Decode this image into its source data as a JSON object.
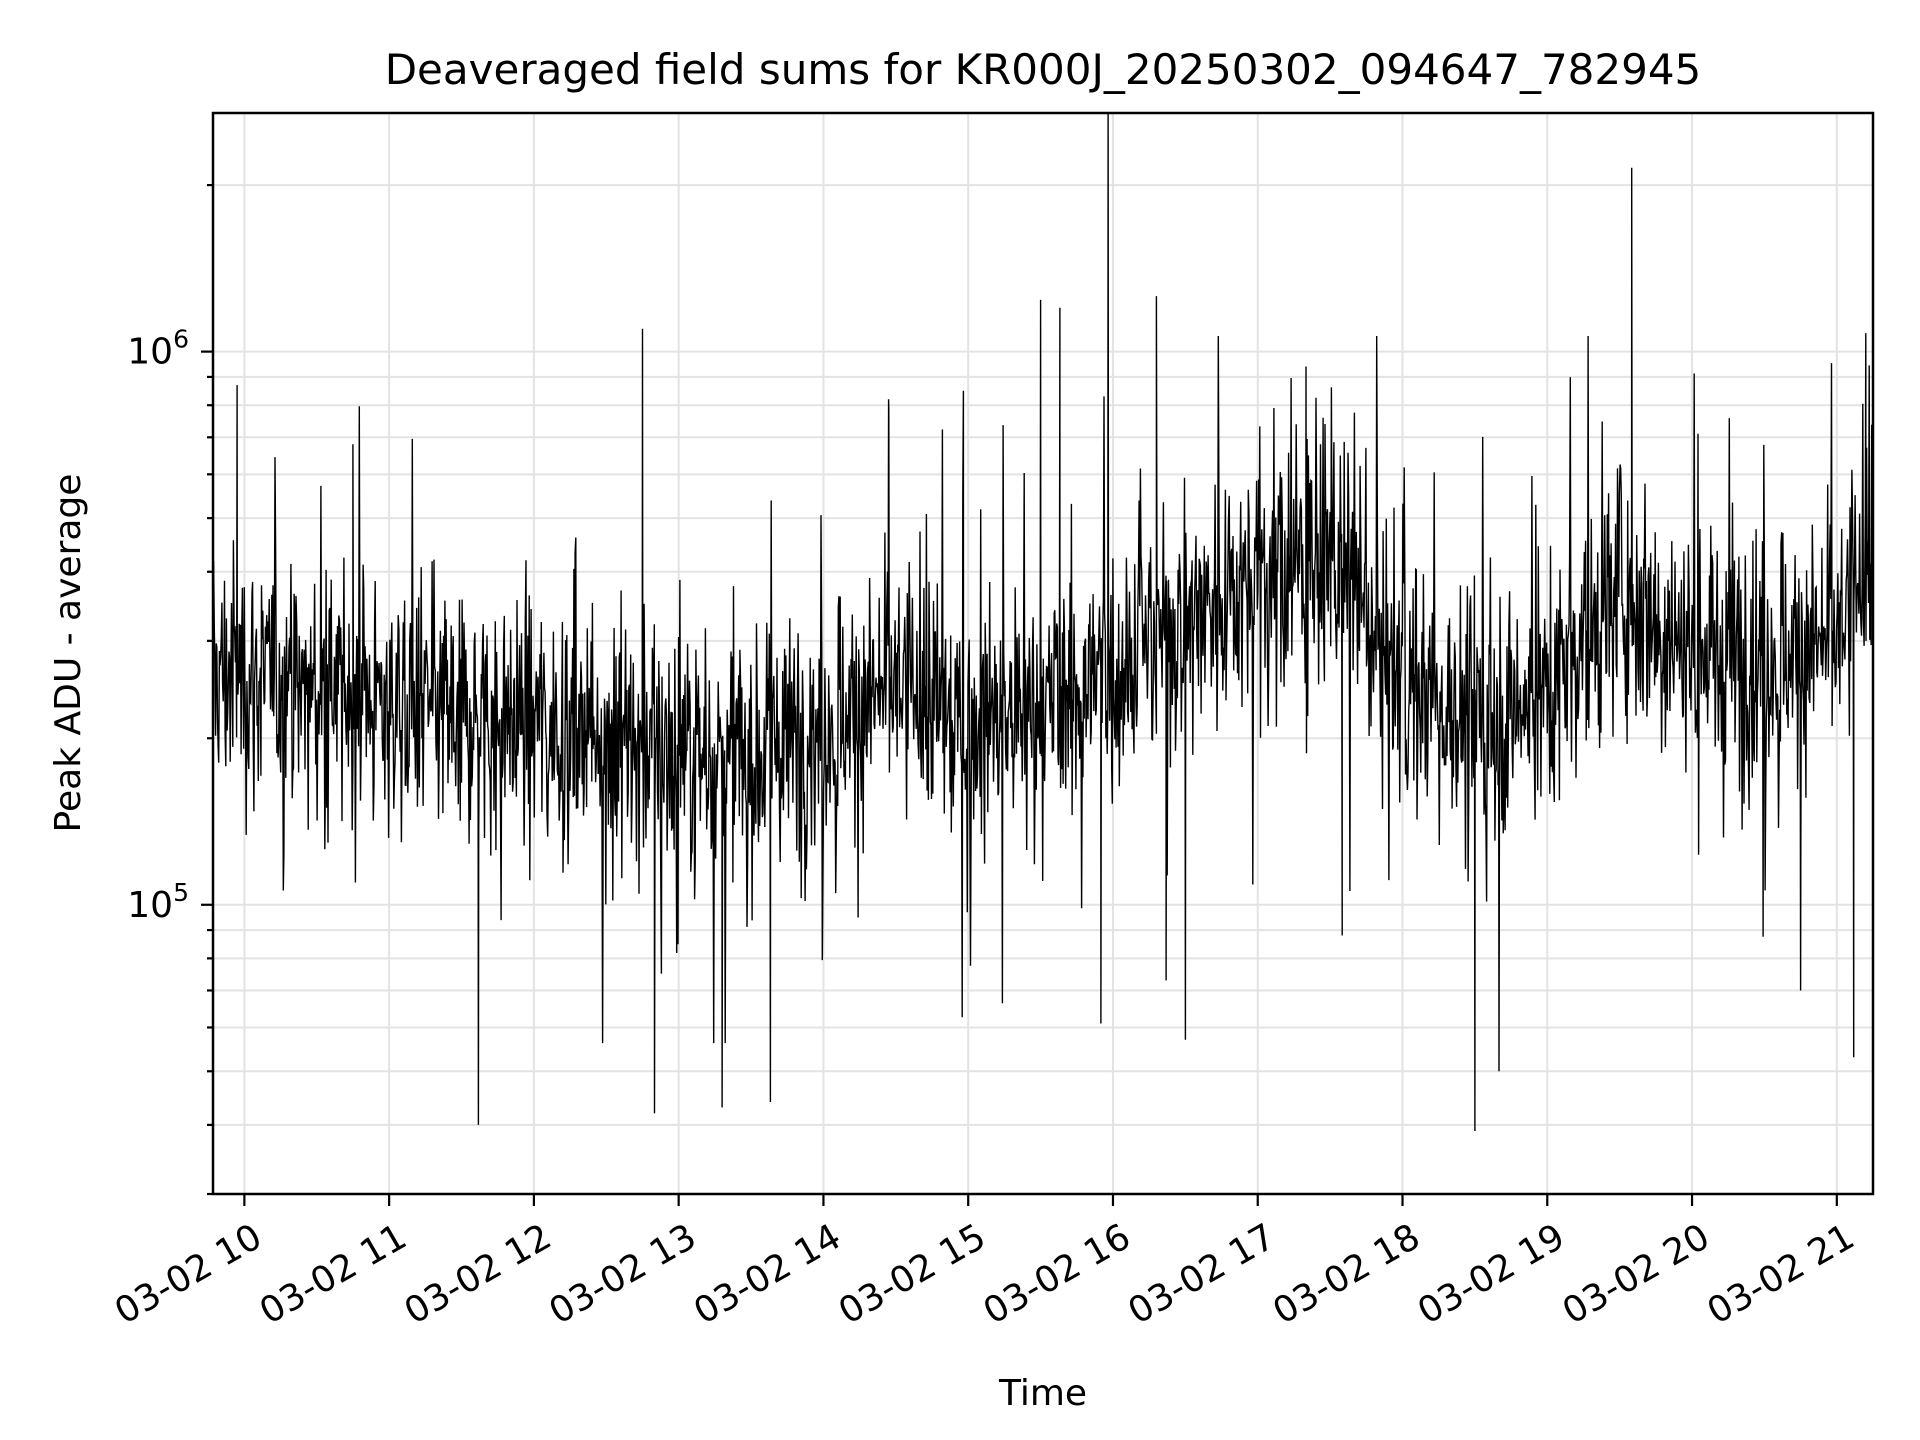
{
  "chart_data": {
    "type": "line",
    "title": "Deaveraged field sums for KR000J_20250302_094647_782945",
    "xlabel": "Time",
    "ylabel": "Peak ADU - average",
    "xscale": "time",
    "yscale": "log",
    "xlim": [
      "2025-03-02 09:47",
      "2025-03-02 21:15"
    ],
    "ylim": [
      30000,
      2700000
    ],
    "grid": true,
    "line_color": "#000000",
    "x_ticks": [
      "2025-03-02 10:00",
      "2025-03-02 11:00",
      "2025-03-02 12:00",
      "2025-03-02 13:00",
      "2025-03-02 14:00",
      "2025-03-02 15:00",
      "2025-03-02 16:00",
      "2025-03-02 17:00",
      "2025-03-02 18:00",
      "2025-03-02 19:00",
      "2025-03-02 20:00",
      "2025-03-02 21:00"
    ],
    "x_tick_labels": [
      "03-02 10",
      "03-02 11",
      "03-02 12",
      "03-02 13",
      "03-02 14",
      "03-02 15",
      "03-02 16",
      "03-02 17",
      "03-02 18",
      "03-02 19",
      "03-02 20",
      "03-02 21"
    ],
    "y_major_ticks": [
      100000,
      1000000
    ],
    "y_tick_labels": [
      {
        "base": "10",
        "exp": "5"
      },
      {
        "base": "10",
        "exp": "6"
      }
    ],
    "series": [
      {
        "x": [
          "2025-03-02 09:47",
          "2025-03-02 10:00",
          "2025-03-02 10:30",
          "2025-03-02 11:00",
          "2025-03-02 11:30",
          "2025-03-02 12:00",
          "2025-03-02 12:30",
          "2025-03-02 13:00",
          "2025-03-02 13:30",
          "2025-03-02 14:00",
          "2025-03-02 14:30",
          "2025-03-02 15:00",
          "2025-03-02 15:30",
          "2025-03-02 16:00",
          "2025-03-02 16:30",
          "2025-03-02 17:00",
          "2025-03-02 17:30",
          "2025-03-02 18:00",
          "2025-03-02 18:30",
          "2025-03-02 19:00",
          "2025-03-02 19:30",
          "2025-03-02 20:00",
          "2025-03-02 20:30",
          "2025-03-02 21:00",
          "2025-03-02 21:15"
        ],
        "y": [
          260000,
          260000,
          240000,
          230000,
          220000,
          215000,
          210000,
          190000,
          185000,
          210000,
          250000,
          210000,
          220000,
          270000,
          330000,
          400000,
          420000,
          260000,
          210000,
          240000,
          380000,
          290000,
          280000,
          300000,
          450000
        ],
        "noise": {
          "typical_min": 100000,
          "typical_max": 600000
        },
        "spikes": [
          {
            "x": "2025-03-02 09:57",
            "y": 870000
          },
          {
            "x": "2025-03-02 10:45",
            "y": 680000
          },
          {
            "x": "2025-03-02 11:37",
            "y": 40000
          },
          {
            "x": "2025-03-02 12:45",
            "y": 1100000
          },
          {
            "x": "2025-03-02 12:50",
            "y": 42000
          },
          {
            "x": "2025-03-02 13:18",
            "y": 43000
          },
          {
            "x": "2025-03-02 13:38",
            "y": 44000
          },
          {
            "x": "2025-03-02 14:27",
            "y": 820000
          },
          {
            "x": "2025-03-02 14:58",
            "y": 850000
          },
          {
            "x": "2025-03-02 15:30",
            "y": 1240000
          },
          {
            "x": "2025-03-02 15:38",
            "y": 1200000
          },
          {
            "x": "2025-03-02 15:55",
            "y": 61000
          },
          {
            "x": "2025-03-02 15:58",
            "y": 2800000
          },
          {
            "x": "2025-03-02 16:18",
            "y": 1260000
          },
          {
            "x": "2025-03-02 16:22",
            "y": 73000
          },
          {
            "x": "2025-03-02 16:30",
            "y": 57000
          },
          {
            "x": "2025-03-02 17:20",
            "y": 940000
          },
          {
            "x": "2025-03-02 17:35",
            "y": 88000
          },
          {
            "x": "2025-03-02 18:30",
            "y": 39000
          },
          {
            "x": "2025-03-02 18:40",
            "y": 50000
          },
          {
            "x": "2025-03-02 19:35",
            "y": 2150000
          },
          {
            "x": "2025-03-02 20:45",
            "y": 70000
          },
          {
            "x": "2025-03-02 21:07",
            "y": 53000
          },
          {
            "x": "2025-03-02 21:12",
            "y": 1080000
          }
        ]
      }
    ]
  }
}
